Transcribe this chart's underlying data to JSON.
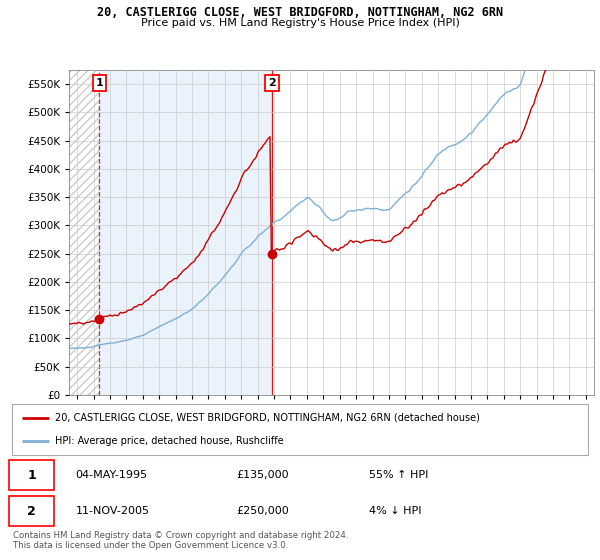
{
  "title": "20, CASTLERIGG CLOSE, WEST BRIDGFORD, NOTTINGHAM, NG2 6RN",
  "subtitle": "Price paid vs. HM Land Registry's House Price Index (HPI)",
  "ylim": [
    0,
    575000
  ],
  "yticks": [
    0,
    50000,
    100000,
    150000,
    200000,
    250000,
    300000,
    350000,
    400000,
    450000,
    500000,
    550000
  ],
  "ytick_labels": [
    "£0",
    "£50K",
    "£100K",
    "£150K",
    "£200K",
    "£250K",
    "£300K",
    "£350K",
    "£400K",
    "£450K",
    "£500K",
    "£550K"
  ],
  "sale1_date": 1995.34,
  "sale1_price": 135000,
  "sale2_date": 2005.87,
  "sale2_price": 250000,
  "hpi_color": "#7EB0D4",
  "price_color": "#cc0000",
  "bg_blue": "#EAF2FB",
  "legend_price": "20, CASTLERIGG CLOSE, WEST BRIDGFORD, NOTTINGHAM, NG2 6RN (detached house)",
  "legend_hpi": "HPI: Average price, detached house, Rushcliffe",
  "annotation1_date": "04-MAY-1995",
  "annotation1_price": "£135,000",
  "annotation1_hpi": "55% ↑ HPI",
  "annotation2_date": "11-NOV-2005",
  "annotation2_price": "£250,000",
  "annotation2_hpi": "4% ↓ HPI",
  "footer": "Contains HM Land Registry data © Crown copyright and database right 2024.\nThis data is licensed under the Open Government Licence v3.0.",
  "xmin": 1993.5,
  "xmax": 2025.5
}
